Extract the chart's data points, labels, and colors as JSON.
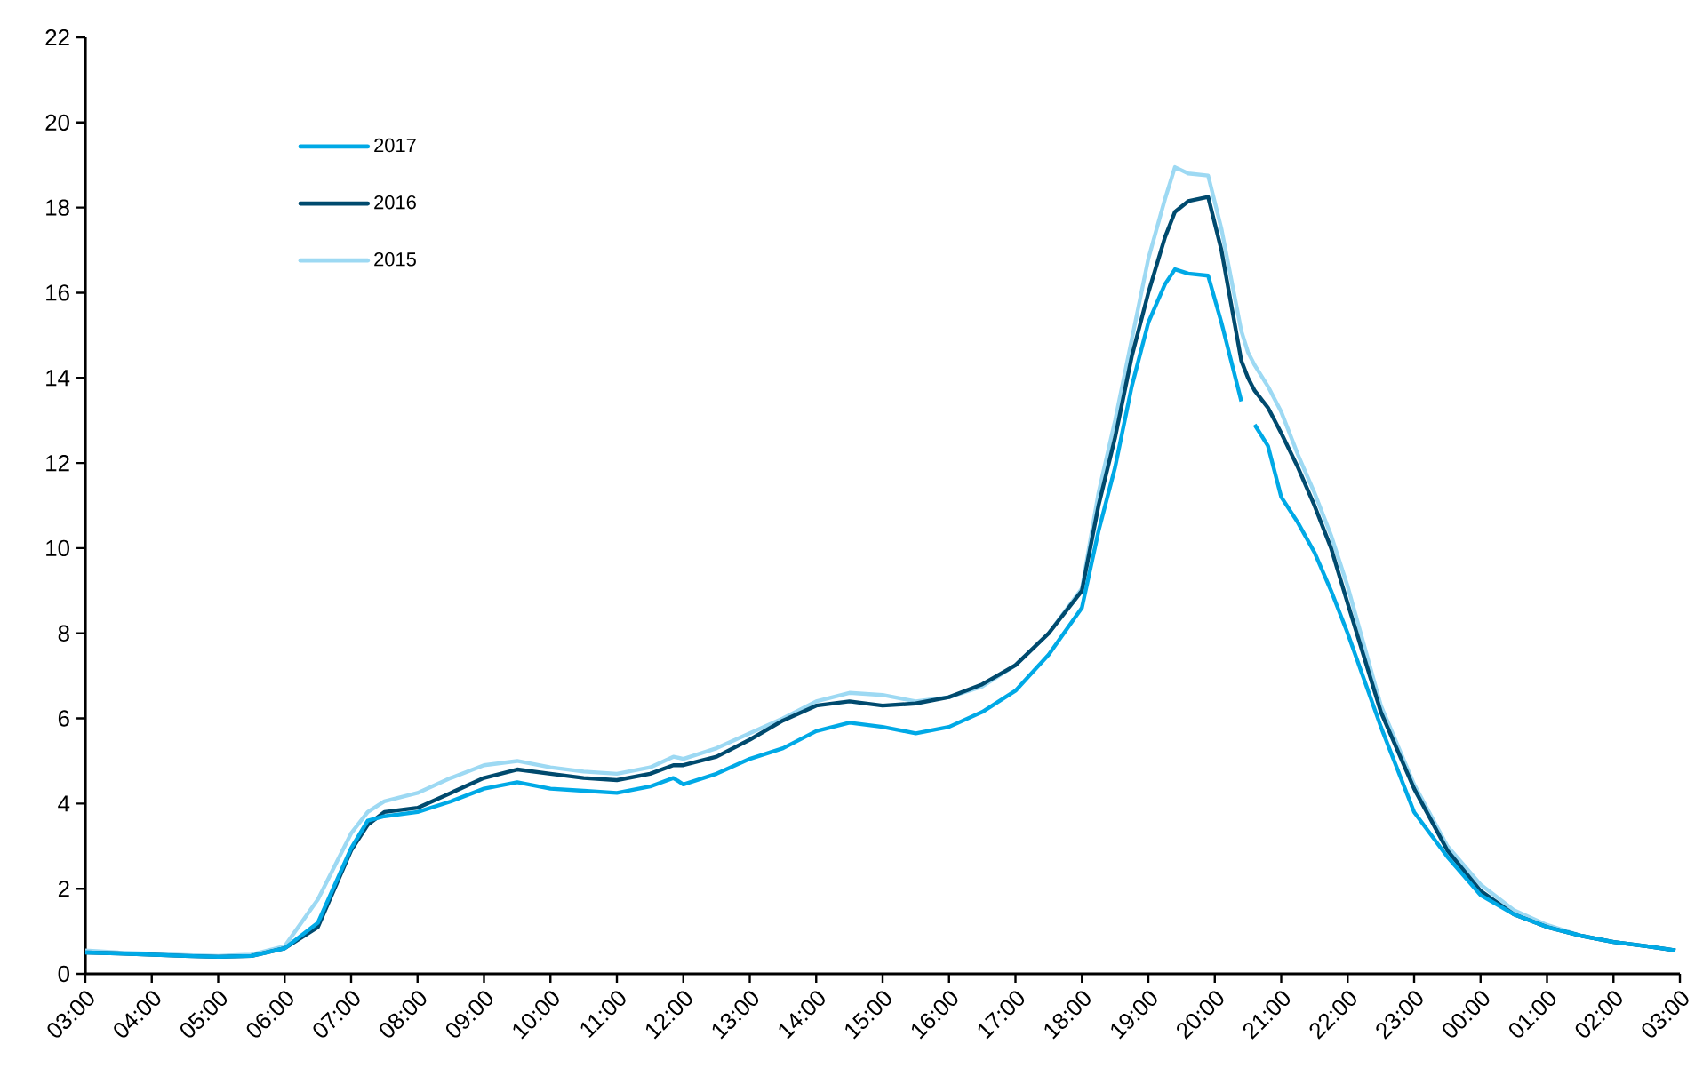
{
  "chart_data": {
    "type": "line",
    "x": [
      "2000-01-01T03:00",
      "2000-01-01T03:30",
      "2000-01-01T04:00",
      "2000-01-01T04:30",
      "2000-01-01T05:00",
      "2000-01-01T05:30",
      "2000-01-01T06:00",
      "2000-01-01T06:30",
      "2000-01-01T07:00",
      "2000-01-01T07:15",
      "2000-01-01T07:30",
      "2000-01-01T08:00",
      "2000-01-01T08:30",
      "2000-01-01T09:00",
      "2000-01-01T09:30",
      "2000-01-01T10:00",
      "2000-01-01T10:30",
      "2000-01-01T11:00",
      "2000-01-01T11:30",
      "2000-01-01T11:51",
      "2000-01-01T12:00",
      "2000-01-01T12:30",
      "2000-01-01T13:00",
      "2000-01-01T13:30",
      "2000-01-01T14:00",
      "2000-01-01T14:30",
      "2000-01-01T15:00",
      "2000-01-01T15:30",
      "2000-01-01T16:00",
      "2000-01-01T16:30",
      "2000-01-01T17:00",
      "2000-01-01T17:30",
      "2000-01-01T18:00",
      "2000-01-01T18:15",
      "2000-01-01T18:30",
      "2000-01-01T18:45",
      "2000-01-01T19:00",
      "2000-01-01T19:15",
      "2000-01-01T19:24",
      "2000-01-01T19:36",
      "2000-01-01T19:54",
      "2000-01-01T20:06",
      "2000-01-01T20:24",
      "2000-01-01T20:30",
      "2000-01-01T20:36",
      "2000-01-01T20:48",
      "2000-01-01T21:00",
      "2000-01-01T21:15",
      "2000-01-01T21:30",
      "2000-01-01T21:45",
      "2000-01-01T22:00",
      "2000-01-01T22:30",
      "2000-01-01T23:00",
      "2000-01-01T23:30",
      "2000-01-02T00:00",
      "2000-01-02T00:30",
      "2000-01-02T01:00",
      "2000-01-02T01:30",
      "2000-01-02T02:00",
      "2000-01-02T02:30",
      "2000-01-02T02:56"
    ],
    "series": [
      {
        "name": "2017",
        "color": "#00a9e6",
        "values": [
          0.5,
          0.48,
          0.45,
          0.42,
          0.4,
          0.42,
          0.6,
          1.2,
          2.95,
          3.6,
          3.7,
          3.8,
          4.05,
          4.35,
          4.5,
          4.35,
          4.3,
          4.25,
          4.4,
          4.6,
          4.45,
          4.7,
          5.05,
          5.3,
          5.7,
          5.9,
          5.8,
          5.65,
          5.8,
          6.15,
          6.65,
          7.5,
          8.6,
          10.4,
          11.9,
          13.8,
          15.3,
          16.2,
          16.55,
          16.45,
          16.4,
          15.3,
          13.45,
          null,
          12.9,
          12.4,
          11.2,
          10.6,
          9.9,
          9.0,
          8.0,
          5.8,
          3.8,
          2.75,
          1.85,
          1.4,
          1.1,
          0.9,
          0.75,
          0.65,
          0.55
        ]
      },
      {
        "name": "2016",
        "color": "#004a6e",
        "values": [
          0.5,
          0.48,
          0.45,
          0.42,
          0.4,
          0.42,
          0.6,
          1.1,
          2.9,
          3.5,
          3.8,
          3.9,
          4.25,
          4.6,
          4.8,
          4.7,
          4.6,
          4.55,
          4.7,
          4.9,
          4.9,
          5.1,
          5.5,
          5.95,
          6.3,
          6.4,
          6.3,
          6.35,
          6.5,
          6.8,
          7.25,
          8.0,
          9.0,
          11.0,
          12.6,
          14.5,
          16.0,
          17.3,
          17.9,
          18.15,
          18.25,
          17.0,
          14.4,
          14.0,
          13.7,
          13.3,
          12.7,
          11.9,
          11.0,
          10.0,
          8.7,
          6.15,
          4.35,
          2.9,
          1.95,
          1.4,
          1.1,
          0.9,
          0.75,
          0.65,
          0.55
        ]
      },
      {
        "name": "2015",
        "color": "#9dd9f3",
        "values": [
          0.55,
          0.5,
          0.47,
          0.44,
          0.42,
          0.45,
          0.65,
          1.75,
          3.3,
          3.8,
          4.05,
          4.25,
          4.6,
          4.9,
          5.0,
          4.85,
          4.75,
          4.7,
          4.85,
          5.1,
          5.05,
          5.3,
          5.65,
          6.0,
          6.4,
          6.6,
          6.55,
          6.4,
          6.5,
          6.75,
          7.25,
          8.0,
          9.05,
          11.3,
          13.0,
          14.9,
          16.8,
          18.2,
          18.95,
          18.8,
          18.75,
          17.5,
          15.1,
          14.6,
          14.3,
          13.8,
          13.2,
          12.2,
          11.3,
          10.3,
          9.1,
          6.3,
          4.45,
          3.0,
          2.1,
          1.5,
          1.15,
          0.9,
          0.75,
          0.65,
          0.55
        ]
      }
    ],
    "xlim": [
      "2000-01-01T03:00",
      "2000-01-02T03:00"
    ],
    "xticks": [
      {
        "value": "2000-01-01T03:00",
        "label": "03:00"
      },
      {
        "value": "2000-01-01T04:00",
        "label": "04:00"
      },
      {
        "value": "2000-01-01T05:00",
        "label": "05:00"
      },
      {
        "value": "2000-01-01T06:00",
        "label": "06:00"
      },
      {
        "value": "2000-01-01T07:00",
        "label": "07:00"
      },
      {
        "value": "2000-01-01T08:00",
        "label": "08:00"
      },
      {
        "value": "2000-01-01T09:00",
        "label": "09:00"
      },
      {
        "value": "2000-01-01T10:00",
        "label": "10:00"
      },
      {
        "value": "2000-01-01T11:00",
        "label": "11:00"
      },
      {
        "value": "2000-01-01T12:00",
        "label": "12:00"
      },
      {
        "value": "2000-01-01T13:00",
        "label": "13:00"
      },
      {
        "value": "2000-01-01T14:00",
        "label": "14:00"
      },
      {
        "value": "2000-01-01T15:00",
        "label": "15:00"
      },
      {
        "value": "2000-01-01T16:00",
        "label": "16:00"
      },
      {
        "value": "2000-01-01T17:00",
        "label": "17:00"
      },
      {
        "value": "2000-01-01T18:00",
        "label": "18:00"
      },
      {
        "value": "2000-01-01T19:00",
        "label": "19:00"
      },
      {
        "value": "2000-01-01T20:00",
        "label": "20:00"
      },
      {
        "value": "2000-01-01T21:00",
        "label": "21:00"
      },
      {
        "value": "2000-01-01T22:00",
        "label": "22:00"
      },
      {
        "value": "2000-01-01T23:00",
        "label": "23:00"
      },
      {
        "value": "2000-01-02T00:00",
        "label": "00:00"
      },
      {
        "value": "2000-01-02T01:00",
        "label": "01:00"
      },
      {
        "value": "2000-01-02T02:00",
        "label": "02:00"
      },
      {
        "value": "2000-01-02T03:00",
        "label": "03:00"
      }
    ],
    "ylim": [
      0,
      22
    ],
    "yticks": [
      0,
      2,
      4,
      6,
      8,
      10,
      12,
      14,
      16,
      18,
      20,
      22
    ],
    "grid": false,
    "legend": "top left",
    "marker": "none",
    "line_style": "solid"
  }
}
